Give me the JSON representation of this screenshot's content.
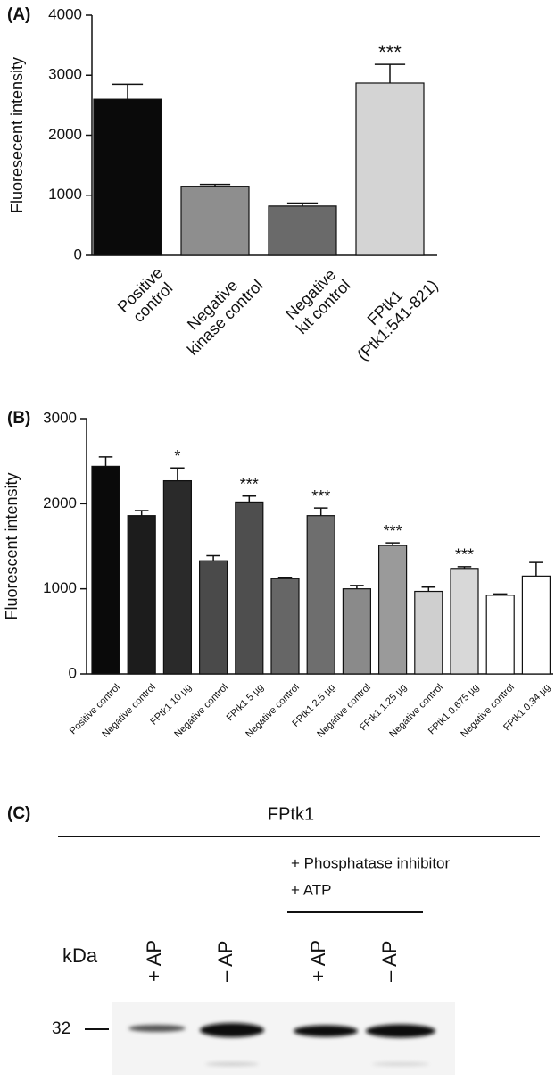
{
  "chart_data": [
    {
      "type": "bar",
      "panel": "(A)",
      "y_label": "Fluoresecent intensity",
      "categories": [
        "Positive\ncontrol",
        "Negative\nkinase control",
        "Negative\nkit control",
        "FPtk1\n(Ptk1:541-821)"
      ],
      "values": [
        2600,
        1150,
        820,
        2870
      ],
      "errors": [
        250,
        30,
        50,
        310
      ],
      "colors": [
        "#0a0a0a",
        "#8e8e8e",
        "#6a6a6a",
        "#d4d4d4"
      ],
      "annotations": [
        {
          "index": 3,
          "text": "***"
        }
      ],
      "ylim": [
        0,
        4000
      ],
      "yticks": [
        0,
        1000,
        2000,
        3000,
        4000
      ]
    },
    {
      "type": "bar",
      "panel": "(B)",
      "y_label": "Fluorescent intensity",
      "categories": [
        "Positive control",
        "Negative control",
        "FPtk1 10 µg",
        "Negative control",
        "FPtk1 5 µg",
        "Negative control",
        "FPtk1 2.5 µg",
        "Negative control",
        "FPtk1 1.25 µg",
        "Negative control",
        "FPtk1 0.675 µg",
        "Negative control",
        "FPtk1 0.34 µg"
      ],
      "values": [
        2440,
        1860,
        2270,
        1330,
        2020,
        1120,
        1860,
        1000,
        1510,
        970,
        1240,
        925,
        1150
      ],
      "errors": [
        110,
        60,
        150,
        60,
        70,
        15,
        90,
        40,
        30,
        50,
        20,
        15,
        160
      ],
      "colors": [
        "#0a0a0a",
        "#1c1c1c",
        "#2a2a2a",
        "#4a4a4a",
        "#4e4e4e",
        "#666666",
        "#6e6e6e",
        "#8a8a8a",
        "#9a9a9a",
        "#cfcfcf",
        "#d8d8d8",
        "#ffffff",
        "#ffffff"
      ],
      "annotations": [
        {
          "index": 2,
          "text": "*"
        },
        {
          "index": 4,
          "text": "***"
        },
        {
          "index": 6,
          "text": "***"
        },
        {
          "index": 8,
          "text": "***"
        },
        {
          "index": 10,
          "text": "***"
        }
      ],
      "ylim": [
        0,
        3000
      ],
      "yticks": [
        0,
        1000,
        2000,
        3000
      ]
    }
  ],
  "blot": {
    "panel": "(C)",
    "title": "FPtk1",
    "conditions": [
      "+ Phosphatase inhibitor",
      "+ ATP"
    ],
    "unit": "kDa",
    "lanes": [
      "+ AP",
      "– AP",
      "+ AP",
      "– AP"
    ],
    "marker": "32"
  }
}
